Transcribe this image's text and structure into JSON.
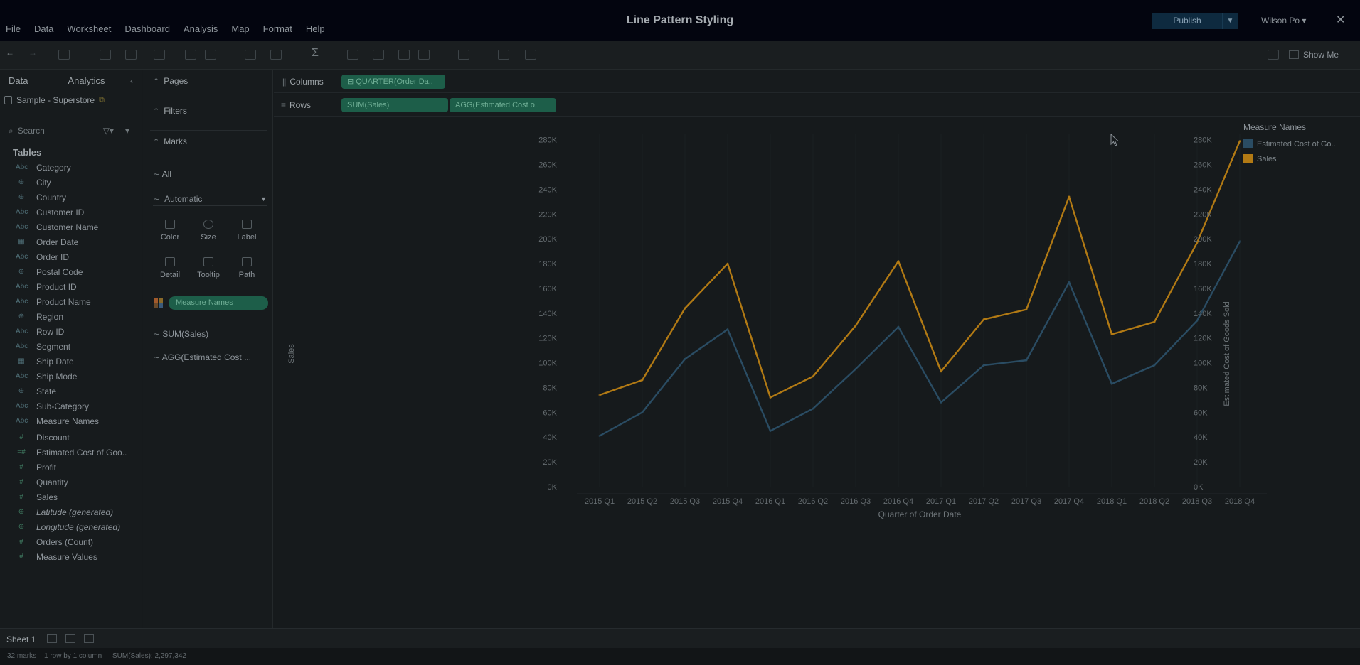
{
  "window": {
    "title": "Line Pattern Styling",
    "publish_label": "Publish",
    "user_name": "Wilson Po ▾",
    "close_glyph": "✕"
  },
  "menu": [
    "File",
    "Data",
    "Worksheet",
    "Dashboard",
    "Analysis",
    "Map",
    "Format",
    "Help"
  ],
  "toolbar": {
    "show_me_label": "Show Me"
  },
  "data_pane": {
    "tab_data": "Data",
    "tab_analytics": "Analytics",
    "datasource": "Sample - Superstore",
    "search_placeholder": "Search",
    "tables_title": "Tables",
    "dimensions": [
      {
        "name": "Category",
        "icon": "Abc"
      },
      {
        "name": "City",
        "icon": "⊕"
      },
      {
        "name": "Country",
        "icon": "⊕"
      },
      {
        "name": "Customer ID",
        "icon": "Abc"
      },
      {
        "name": "Customer Name",
        "icon": "Abc"
      },
      {
        "name": "Order Date",
        "icon": "▦"
      },
      {
        "name": "Order ID",
        "icon": "Abc"
      },
      {
        "name": "Postal Code",
        "icon": "⊕"
      },
      {
        "name": "Product ID",
        "icon": "Abc"
      },
      {
        "name": "Product Name",
        "icon": "Abc"
      },
      {
        "name": "Region",
        "icon": "⊕"
      },
      {
        "name": "Row ID",
        "icon": "Abc"
      },
      {
        "name": "Segment",
        "icon": "Abc"
      },
      {
        "name": "Ship Date",
        "icon": "▦"
      },
      {
        "name": "Ship Mode",
        "icon": "Abc"
      },
      {
        "name": "State",
        "icon": "⊕"
      },
      {
        "name": "Sub-Category",
        "icon": "Abc"
      },
      {
        "name": "Measure Names",
        "icon": "Abc"
      }
    ],
    "measures": [
      {
        "name": "Discount",
        "icon": "#",
        "italic": false
      },
      {
        "name": "Estimated Cost of Goo..",
        "icon": "=#",
        "italic": false
      },
      {
        "name": "Profit",
        "icon": "#",
        "italic": false
      },
      {
        "name": "Quantity",
        "icon": "#",
        "italic": false
      },
      {
        "name": "Sales",
        "icon": "#",
        "italic": false
      },
      {
        "name": "Latitude (generated)",
        "icon": "⊕",
        "italic": true
      },
      {
        "name": "Longitude (generated)",
        "icon": "⊕",
        "italic": true
      },
      {
        "name": "Orders (Count)",
        "icon": "#",
        "italic": false
      },
      {
        "name": "Measure Values",
        "icon": "#",
        "italic": false
      }
    ]
  },
  "shelves": {
    "pages": "Pages",
    "filters": "Filters",
    "marks": "Marks",
    "marks_all": "All",
    "mark_type": "Automatic",
    "cards": [
      "Color",
      "Size",
      "Label",
      "Detail",
      "Tooltip",
      "Path"
    ],
    "color_pill": "Measure Names",
    "measure_tabs": [
      "SUM(Sales)",
      "AGG(Estimated Cost ..."
    ],
    "columns_label": "Columns",
    "rows_label": "Rows",
    "columns_pill": "⊟ QUARTER(Order Da..",
    "rows_pills": [
      "SUM(Sales)",
      "AGG(Estimated Cost o.."
    ]
  },
  "colors": {
    "sales": "#b27a14",
    "cogs": "#2a4c63",
    "pill": "#1d5e49"
  },
  "chart_data": {
    "type": "line",
    "categories": [
      "2015 Q1",
      "2015 Q2",
      "2015 Q3",
      "2015 Q4",
      "2016 Q1",
      "2016 Q2",
      "2016 Q3",
      "2016 Q4",
      "2017 Q1",
      "2017 Q2",
      "2017 Q3",
      "2017 Q4",
      "2018 Q1",
      "2018 Q2",
      "2018 Q3",
      "2018 Q4"
    ],
    "series": [
      {
        "name": "Estimated Cost of Go..",
        "axis": "right",
        "values": [
          41000,
          60000,
          103000,
          127000,
          45000,
          63000,
          95000,
          129000,
          68000,
          98000,
          102000,
          165000,
          83000,
          98000,
          134000,
          198000
        ]
      },
      {
        "name": "Sales",
        "axis": "left",
        "values": [
          74000,
          86000,
          144000,
          180000,
          72000,
          89000,
          130000,
          182000,
          93000,
          135000,
          143000,
          234000,
          123000,
          133000,
          197000,
          279000
        ]
      }
    ],
    "xlabel": "Quarter of Order Date",
    "ylabel": "Sales",
    "y2label": "Estimated Cost of Goods Sold",
    "yticks": [
      "0K",
      "20K",
      "40K",
      "60K",
      "80K",
      "100K",
      "120K",
      "140K",
      "160K",
      "180K",
      "200K",
      "220K",
      "240K",
      "260K",
      "280K"
    ],
    "ylim": [
      0,
      285000
    ],
    "legend_title": "Measure Names",
    "grid": false,
    "legend_position": "top-right"
  },
  "sheet": {
    "tab": "Sheet 1"
  },
  "status": {
    "marks": "32 marks",
    "rows_cols": "1 row by 1 column",
    "sum": "SUM(Sales): 2,297,342"
  }
}
